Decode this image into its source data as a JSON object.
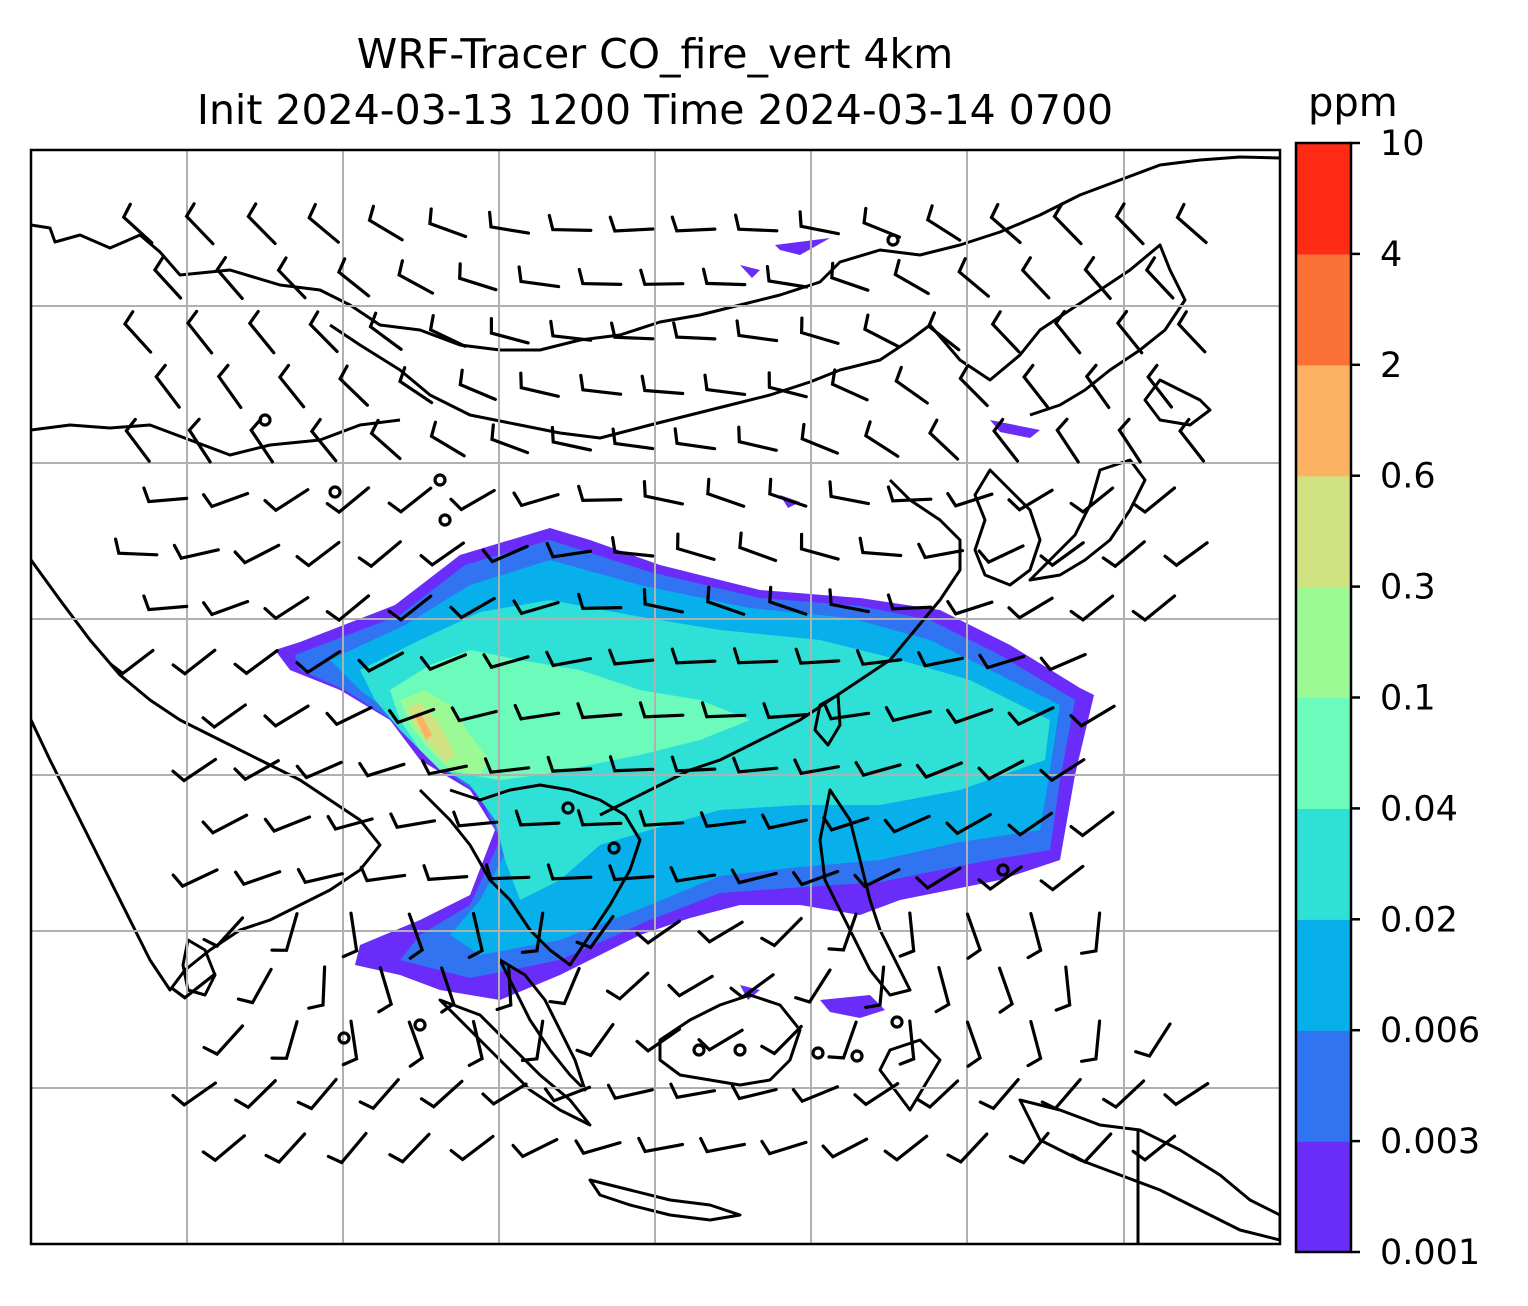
{
  "title": {
    "line1": "WRF-Tracer CO_fire_vert 4km",
    "line2": "Init 2024-03-13 1200 Time 2024-03-14 0700"
  },
  "colorbar": {
    "unit": "ppm",
    "ticks": [
      "0.001",
      "0.003",
      "0.006",
      "0.02",
      "0.04",
      "0.1",
      "0.3",
      "0.6",
      "2",
      "4",
      "10"
    ],
    "colors": [
      "#6a2cf9",
      "#3074f2",
      "#07b0ea",
      "#2ee0d6",
      "#6cfbbb",
      "#9cfa95",
      "#d1e283",
      "#fdb163",
      "#fc7136",
      "#fe2a14"
    ]
  },
  "map": {
    "land_outline_color": "#000000",
    "gridline_color": "#b0b0b0"
  }
}
